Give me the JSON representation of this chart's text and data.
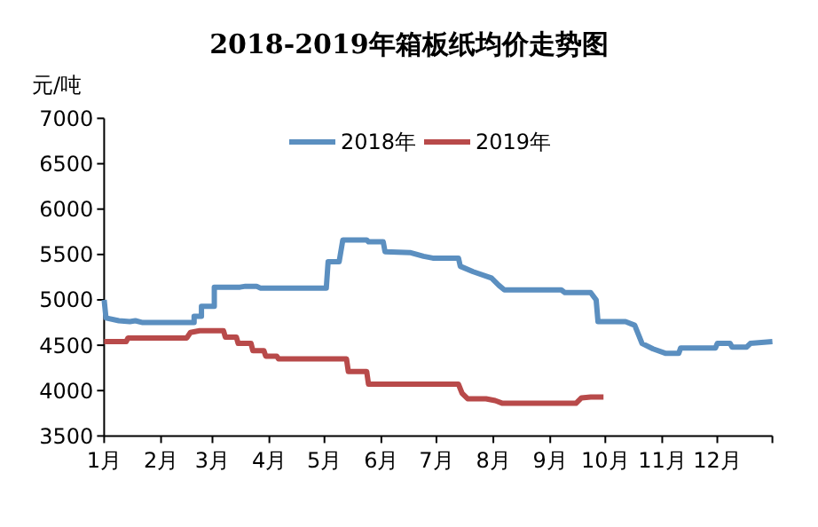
{
  "chart_data": {
    "type": "line",
    "title": "2018-2019年箱板纸均价走势图",
    "ylabel": "元/吨",
    "legend": "top",
    "grid": false,
    "marker": "none",
    "line_style": "solid",
    "xlim": [
      "--01-01",
      "--12-31"
    ],
    "ylim": [
      3500,
      7000
    ],
    "yticks": [
      3500,
      4000,
      4500,
      5000,
      5500,
      6000,
      6500,
      7000
    ],
    "xticks": [
      {
        "value": "--01-01",
        "label": "1月"
      },
      {
        "value": "--02-01",
        "label": "2月"
      },
      {
        "value": "--03-01",
        "label": "3月"
      },
      {
        "value": "--04-01",
        "label": "4月"
      },
      {
        "value": "--05-01",
        "label": "5月"
      },
      {
        "value": "--06-01",
        "label": "6月"
      },
      {
        "value": "--07-01",
        "label": "7月"
      },
      {
        "value": "--08-01",
        "label": "8月"
      },
      {
        "value": "--09-01",
        "label": "9月"
      },
      {
        "value": "--10-01",
        "label": "10月"
      },
      {
        "value": "--11-01",
        "label": "11月"
      },
      {
        "value": "--12-01",
        "label": "12月"
      },
      {
        "value": "--12-31",
        "label": null
      }
    ],
    "series": [
      {
        "name": "2018年",
        "color": "#5b8fc0",
        "x": [
          "--01-01",
          "--01-02",
          "--01-09",
          "--01-15",
          "--01-18",
          "--01-22",
          "--02-19",
          "--02-19",
          "--02-23",
          "--02-23",
          "--03-02",
          "--03-02",
          "--03-16",
          "--03-19",
          "--03-25",
          "--03-27",
          "--05-02",
          "--05-03",
          "--05-09",
          "--05-11",
          "--05-24",
          "--05-25",
          "--06-02",
          "--06-03",
          "--06-17",
          "--06-24",
          "--06-29",
          "--07-13",
          "--07-14",
          "--07-21",
          "--07-31",
          "--08-04",
          "--08-07",
          "--09-07",
          "--09-09",
          "--09-23",
          "--09-26",
          "--09-27",
          "--10-12",
          "--10-17",
          "--10-21",
          "--10-27",
          "--11-03",
          "--11-10",
          "--11-11",
          "--11-30",
          "--12-01",
          "--12-08",
          "--12-09",
          "--12-17",
          "--12-19",
          "--12-31"
        ],
        "values": [
          5000,
          4800,
          4770,
          4760,
          4770,
          4750,
          4750,
          4820,
          4820,
          4930,
          4930,
          5140,
          5140,
          5150,
          5150,
          5130,
          5130,
          5420,
          5420,
          5660,
          5660,
          5640,
          5640,
          5530,
          5520,
          5480,
          5460,
          5460,
          5370,
          5310,
          5240,
          5160,
          5110,
          5110,
          5080,
          5080,
          5000,
          4760,
          4760,
          4720,
          4520,
          4460,
          4410,
          4410,
          4470,
          4470,
          4520,
          4520,
          4480,
          4480,
          4520,
          4540
        ]
      },
      {
        "name": "2019年",
        "color": "#b84a4a",
        "x": [
          "--01-01",
          "--01-13",
          "--01-14",
          "--02-15",
          "--02-17",
          "--02-22",
          "--03-07",
          "--03-08",
          "--03-14",
          "--03-15",
          "--03-22",
          "--03-23",
          "--03-29",
          "--03-30",
          "--04-05",
          "--04-06",
          "--05-13",
          "--05-14",
          "--05-24",
          "--05-25",
          "--07-13",
          "--07-15",
          "--07-18",
          "--07-28",
          "--08-02",
          "--08-06",
          "--09-15",
          "--09-18",
          "--09-23",
          "--09-30"
        ],
        "values": [
          4540,
          4540,
          4580,
          4580,
          4640,
          4660,
          4660,
          4590,
          4590,
          4520,
          4520,
          4440,
          4440,
          4380,
          4380,
          4350,
          4350,
          4210,
          4210,
          4070,
          4070,
          3970,
          3910,
          3910,
          3890,
          3860,
          3860,
          3920,
          3930,
          3930
        ]
      }
    ]
  }
}
